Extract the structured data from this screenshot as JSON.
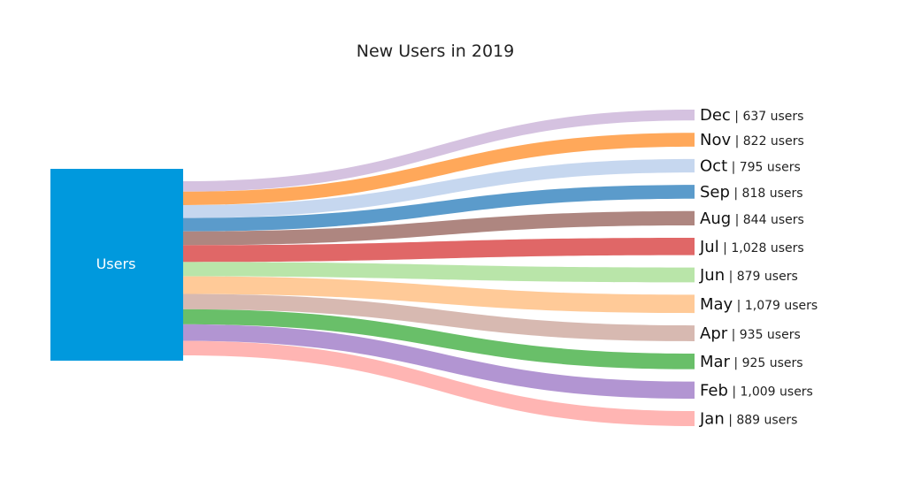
{
  "chart_data": {
    "type": "sankey",
    "title": "New Users in 2019",
    "source": {
      "name": "Users",
      "color": "#0099dd"
    },
    "value_suffix": " users",
    "flows": [
      {
        "name": "Dec",
        "value": 637,
        "value_label": "637",
        "color": "#d5c2e0"
      },
      {
        "name": "Nov",
        "value": 822,
        "value_label": "822",
        "color": "#ffa85a"
      },
      {
        "name": "Oct",
        "value": 795,
        "value_label": "795",
        "color": "#c6d7ef"
      },
      {
        "name": "Sep",
        "value": 818,
        "value_label": "818",
        "color": "#5b9bcb"
      },
      {
        "name": "Aug",
        "value": 844,
        "value_label": "844",
        "color": "#ae8680"
      },
      {
        "name": "Jul",
        "value": 1028,
        "value_label": "1,028",
        "color": "#e06767"
      },
      {
        "name": "Jun",
        "value": 879,
        "value_label": "879",
        "color": "#b9e5a9"
      },
      {
        "name": "May",
        "value": 1079,
        "value_label": "1,079",
        "color": "#ffca98"
      },
      {
        "name": "Apr",
        "value": 935,
        "value_label": "935",
        "color": "#d7b9b1"
      },
      {
        "name": "Mar",
        "value": 925,
        "value_label": "925",
        "color": "#69bf69"
      },
      {
        "name": "Feb",
        "value": 1009,
        "value_label": "1,009",
        "color": "#b295d2"
      },
      {
        "name": "Jan",
        "value": 889,
        "value_label": "889",
        "color": "#ffb5b3"
      }
    ]
  }
}
